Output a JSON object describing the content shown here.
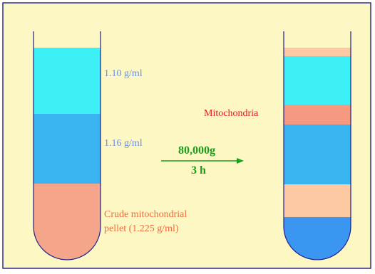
{
  "colors": {
    "background": "#fdf7c3",
    "frame": "#2f2f8f",
    "tube_outline": "#1f1f8f",
    "layer_low_density": "#3cf0f5",
    "layer_high_density": "#3ab4f0",
    "crude_pellet": "#f5a58a",
    "mitochondria_band": "#f59a80",
    "light_band": "#fcc9a2",
    "bottom_fraction": "#3a96f0",
    "arrow": "#1a9e1a"
  },
  "labels": {
    "density_1": "1.10 g/ml",
    "density_2": "1.16 g/ml",
    "crude_line1": "Crude mitochondrial",
    "crude_line2": "pellet (1.225 g/ml)",
    "mitochondria": "Mitochondria"
  },
  "centrifugation": {
    "speed": "80,000g",
    "duration": "3 h"
  }
}
